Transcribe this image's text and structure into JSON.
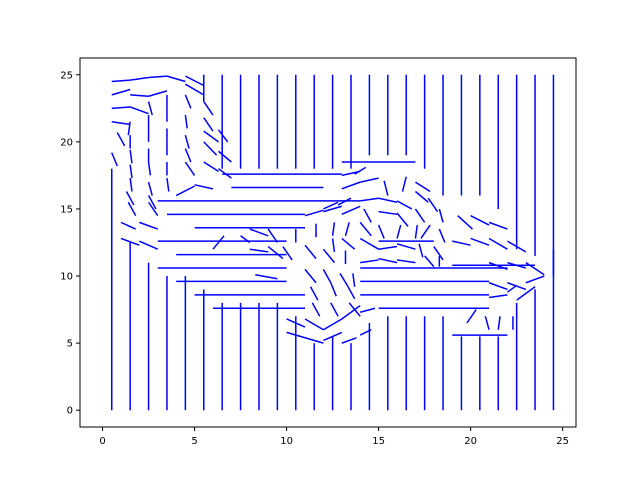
{
  "chart_data": {
    "type": "line",
    "title": "",
    "xlabel": "",
    "ylabel": "",
    "xlim": [
      -1.225,
      25.725
    ],
    "ylim": [
      -1.25,
      26.25
    ],
    "xticks": [
      0,
      5,
      10,
      15,
      20,
      25
    ],
    "yticks": [
      0,
      5,
      10,
      15,
      20,
      25
    ],
    "xtick_labels": [
      "0",
      "5",
      "10",
      "15",
      "20",
      "25"
    ],
    "ytick_labels": [
      "0",
      "5",
      "10",
      "15",
      "20",
      "25"
    ],
    "grid": false,
    "line_color": "#0000ff",
    "description_of_marks": "segments",
    "segments": [
      [
        0.5,
        0,
        0.5,
        18
      ],
      [
        1.5,
        0,
        1.5,
        12.5
      ],
      [
        2.5,
        0,
        2.5,
        11
      ],
      [
        3.5,
        0,
        3.5,
        10
      ],
      [
        4.5,
        0,
        4.5,
        10
      ],
      [
        5.5,
        0,
        5.5,
        9
      ],
      [
        6.5,
        0,
        6.5,
        8
      ],
      [
        7.5,
        0,
        7.5,
        8
      ],
      [
        8.5,
        0,
        8.5,
        8
      ],
      [
        9.5,
        0,
        9.5,
        8
      ],
      [
        10.5,
        0,
        10.5,
        7
      ],
      [
        11.5,
        0,
        11.5,
        5
      ],
      [
        12.5,
        0,
        12.5,
        5.5
      ],
      [
        13.5,
        0,
        13.5,
        5
      ],
      [
        14.5,
        0,
        14.5,
        6.5
      ],
      [
        15.5,
        0,
        15.5,
        7
      ],
      [
        16.5,
        0,
        16.5,
        7
      ],
      [
        17.5,
        0,
        17.5,
        7
      ],
      [
        18.5,
        0,
        18.5,
        7
      ],
      [
        19.5,
        0,
        19.5,
        5.5
      ],
      [
        20.5,
        0,
        20.5,
        5.5
      ],
      [
        21.5,
        0,
        21.5,
        5.5
      ],
      [
        22.5,
        0,
        22.5,
        8
      ],
      [
        23.5,
        0,
        23.5,
        9
      ],
      [
        24.5,
        0,
        24.5,
        12
      ],
      [
        5.5,
        25,
        5.5,
        23
      ],
      [
        6.5,
        25,
        6.5,
        18
      ],
      [
        7.5,
        25,
        7.5,
        18
      ],
      [
        8.5,
        25,
        8.5,
        18
      ],
      [
        9.5,
        25,
        9.5,
        18
      ],
      [
        10.5,
        25,
        10.5,
        18
      ],
      [
        11.5,
        25,
        11.5,
        18
      ],
      [
        12.5,
        25,
        12.5,
        18
      ],
      [
        13.5,
        25,
        13.5,
        18
      ],
      [
        14.5,
        25,
        14.5,
        19
      ],
      [
        15.5,
        25,
        15.5,
        19
      ],
      [
        16.5,
        25,
        16.5,
        19
      ],
      [
        17.5,
        25,
        17.5,
        18
      ],
      [
        18.5,
        25,
        18.5,
        16
      ],
      [
        19.5,
        25,
        19.5,
        16
      ],
      [
        20.5,
        25,
        20.5,
        16
      ],
      [
        21.5,
        25,
        21.5,
        15
      ],
      [
        22.5,
        25,
        22.5,
        12
      ],
      [
        23.5,
        25,
        23.5,
        11.5
      ],
      [
        24.5,
        25,
        24.5,
        10
      ],
      [
        3,
        15.6,
        14,
        15.6
      ],
      [
        6.5,
        17.6,
        13,
        17.6
      ],
      [
        7,
        16.6,
        12,
        16.6
      ],
      [
        13,
        18.5,
        17,
        18.5
      ],
      [
        3.5,
        14.6,
        11,
        14.6
      ],
      [
        5,
        13.6,
        11,
        13.6
      ],
      [
        3,
        12.6,
        10,
        12.6
      ],
      [
        4,
        11.6,
        10,
        11.6
      ],
      [
        3,
        10.6,
        10,
        10.6
      ],
      [
        4,
        9.6,
        10,
        9.6
      ],
      [
        5,
        8.6,
        11,
        8.6
      ],
      [
        6,
        7.6,
        11,
        7.6
      ],
      [
        14,
        8.6,
        21,
        8.6
      ],
      [
        14,
        9.6,
        21,
        9.6
      ],
      [
        15,
        7.6,
        21,
        7.6
      ],
      [
        14,
        10.6,
        22,
        10.6
      ],
      [
        19,
        10.8,
        23.5,
        10.8
      ],
      [
        19,
        5.6,
        22,
        5.6
      ],
      [
        15,
        12.6,
        18,
        12.6
      ],
      [
        0.5,
        24.5,
        1.5,
        24.6
      ],
      [
        1.5,
        24.6,
        2.5,
        24.8
      ],
      [
        2.5,
        24.8,
        3.5,
        24.9
      ],
      [
        3.5,
        24.9,
        4.5,
        24.5
      ],
      [
        4.5,
        24.9,
        5.5,
        24.2
      ],
      [
        0.5,
        23.5,
        1.5,
        23.9
      ],
      [
        1.5,
        23.5,
        2.5,
        23.4
      ],
      [
        2.5,
        23.4,
        3.5,
        23.8
      ],
      [
        4.5,
        24.3,
        5.5,
        23.5
      ],
      [
        0.5,
        22.5,
        1.5,
        22.6
      ],
      [
        1.5,
        22.6,
        2.5,
        22.1
      ],
      [
        2.5,
        23,
        2.7,
        22
      ],
      [
        3.5,
        23.5,
        3.5,
        22.5
      ],
      [
        4.5,
        23.5,
        4.8,
        22.5
      ],
      [
        5.5,
        23,
        6,
        22
      ],
      [
        0.5,
        21.5,
        1.5,
        21.3
      ],
      [
        1.5,
        21.5,
        1.4,
        20.5
      ],
      [
        2.5,
        22,
        2.5,
        21
      ],
      [
        3.5,
        22.5,
        3.5,
        21.5
      ],
      [
        4.5,
        22,
        4.6,
        21
      ],
      [
        5.5,
        21.8,
        6,
        20.8
      ],
      [
        0.8,
        20.7,
        1.2,
        19.7
      ],
      [
        1.5,
        20.5,
        1.5,
        19.5
      ],
      [
        2.5,
        21,
        2.5,
        20
      ],
      [
        3.5,
        21,
        3.5,
        20
      ],
      [
        4.5,
        20.5,
        4.7,
        19.5
      ],
      [
        5.5,
        20.8,
        6.3,
        20
      ],
      [
        6.3,
        20.9,
        6.8,
        20
      ],
      [
        0.5,
        19.2,
        0.8,
        18.2
      ],
      [
        1.5,
        19.4,
        1.6,
        18.4
      ],
      [
        2.5,
        19.5,
        2.5,
        18.5
      ],
      [
        3.5,
        20,
        3.5,
        19
      ],
      [
        4.5,
        19.5,
        4.8,
        18.5
      ],
      [
        5.5,
        20,
        6.2,
        19
      ],
      [
        6.3,
        19.3,
        7,
        18.5
      ],
      [
        1.5,
        18.3,
        1.6,
        17.3
      ],
      [
        2.5,
        18.5,
        2.6,
        17.5
      ],
      [
        3.5,
        18.5,
        3.5,
        17.5
      ],
      [
        4.5,
        18.5,
        5,
        17.5
      ],
      [
        5.5,
        18.5,
        6.3,
        17.8
      ],
      [
        6.3,
        18,
        7,
        17.3
      ],
      [
        1.5,
        17.3,
        1.6,
        16.3
      ],
      [
        2.5,
        17,
        2.7,
        16
      ],
      [
        3.5,
        17.3,
        3.6,
        16.3
      ],
      [
        4,
        16,
        5,
        16.7
      ],
      [
        5,
        16.8,
        6,
        16.5
      ],
      [
        13,
        17.5,
        14,
        17.8
      ],
      [
        13.7,
        17.6,
        14.3,
        18.1
      ],
      [
        1.3,
        16.3,
        1.7,
        15.3
      ],
      [
        2.5,
        16,
        2.9,
        15
      ],
      [
        13,
        16.5,
        14,
        17
      ],
      [
        14,
        17,
        15,
        17.3
      ],
      [
        15.3,
        17.1,
        15.5,
        16
      ],
      [
        16.5,
        17.4,
        16.3,
        16.3
      ],
      [
        17,
        17,
        17.8,
        16.3
      ],
      [
        1.4,
        15.5,
        1.8,
        14.5
      ],
      [
        2.5,
        15.5,
        3,
        14.5
      ],
      [
        12,
        15,
        12.8,
        15.5
      ],
      [
        12.8,
        15.3,
        13.5,
        15.8
      ],
      [
        14,
        15.6,
        15,
        15.8
      ],
      [
        15,
        15.8,
        16,
        15.5
      ],
      [
        16,
        15.6,
        16.8,
        15
      ],
      [
        17,
        16.3,
        17.7,
        15.5
      ],
      [
        17.7,
        15.8,
        18.2,
        14.8
      ],
      [
        1,
        14,
        1.8,
        13.5
      ],
      [
        2,
        14,
        3,
        13.5
      ],
      [
        11,
        14.5,
        12,
        14.9
      ],
      [
        12,
        14.8,
        13,
        15.2
      ],
      [
        13,
        14.6,
        14,
        15.2
      ],
      [
        14.2,
        15,
        14.6,
        14
      ],
      [
        15,
        14.8,
        16,
        14.6
      ],
      [
        16,
        14.7,
        16.6,
        13.7
      ],
      [
        17,
        15,
        17.5,
        14
      ],
      [
        18.3,
        15,
        18.5,
        14
      ],
      [
        1,
        12.8,
        2,
        12.3
      ],
      [
        2,
        12.6,
        3,
        12
      ],
      [
        11.6,
        13.9,
        11.6,
        12.9
      ],
      [
        12.6,
        14,
        12.5,
        13
      ],
      [
        13.4,
        14,
        13.2,
        13
      ],
      [
        14,
        14,
        14.6,
        13
      ],
      [
        15,
        13.8,
        15.3,
        12.8
      ],
      [
        16.2,
        13.8,
        16,
        12.8
      ],
      [
        17.1,
        13.8,
        17,
        12.8
      ],
      [
        17.8,
        13.8,
        17.3,
        12.8
      ],
      [
        18.3,
        13.5,
        18.6,
        12.5
      ],
      [
        19.3,
        14.5,
        20.1,
        13.5
      ],
      [
        20,
        14.5,
        21,
        13.8
      ],
      [
        21,
        14,
        22,
        13.5
      ],
      [
        8,
        13.5,
        9,
        13
      ],
      [
        9,
        13.5,
        9.5,
        12.5
      ],
      [
        10.5,
        13.5,
        10.5,
        12.5
      ],
      [
        12.5,
        12.8,
        12.6,
        11.8
      ],
      [
        13,
        12.8,
        13.7,
        12
      ],
      [
        14,
        12.8,
        15,
        12
      ],
      [
        15,
        12,
        16,
        12.2
      ],
      [
        16,
        12.4,
        17,
        12
      ],
      [
        17.2,
        12.4,
        17.4,
        11.4
      ],
      [
        18,
        12.2,
        18.5,
        11.2
      ],
      [
        19,
        12.6,
        20,
        12.3
      ],
      [
        20,
        12.8,
        21,
        12.3
      ],
      [
        21,
        12.8,
        22,
        12
      ],
      [
        22,
        12.6,
        23,
        11.8
      ],
      [
        6,
        12,
        6.6,
        13
      ],
      [
        7.5,
        13,
        8,
        12.5
      ],
      [
        8,
        12,
        9,
        11.8
      ],
      [
        9,
        12.2,
        9.8,
        11.3
      ],
      [
        9.8,
        12.2,
        10.3,
        11.2
      ],
      [
        11,
        12.3,
        11.6,
        11.3
      ],
      [
        12,
        12,
        12.6,
        11
      ],
      [
        13.2,
        11.9,
        13.2,
        10.9
      ],
      [
        14,
        11,
        15,
        11.2
      ],
      [
        15,
        11.3,
        16,
        11
      ],
      [
        16,
        11.2,
        17,
        11
      ],
      [
        17.5,
        11.5,
        18,
        10.7
      ],
      [
        18.3,
        11.5,
        18.3,
        10.7
      ],
      [
        8.3,
        10.1,
        9.5,
        9.8
      ],
      [
        11,
        10.5,
        11.6,
        9.5
      ],
      [
        12,
        10.5,
        12.4,
        9.5
      ],
      [
        12.9,
        10.2,
        13.3,
        9.3
      ],
      [
        13.6,
        10.2,
        13.7,
        9.2
      ],
      [
        21,
        11,
        22,
        10.5
      ],
      [
        22,
        11,
        23,
        10.6
      ],
      [
        23,
        11,
        24,
        10.1
      ],
      [
        11.3,
        9.2,
        11.7,
        8.2
      ],
      [
        12.4,
        9.5,
        12.7,
        8.5
      ],
      [
        13.3,
        9.3,
        13.7,
        8.3
      ],
      [
        21,
        9.5,
        22,
        9
      ],
      [
        22,
        9.5,
        23,
        9
      ],
      [
        23,
        9.5,
        24,
        10
      ],
      [
        11.4,
        8,
        11.8,
        7
      ],
      [
        12.4,
        8,
        12.8,
        7
      ],
      [
        13.4,
        8,
        14,
        7
      ],
      [
        21,
        8.4,
        22,
        8.6
      ],
      [
        22,
        8.8,
        22.5,
        9.3
      ],
      [
        22.5,
        8.2,
        23.5,
        9.2
      ],
      [
        10,
        6.8,
        11,
        6.2
      ],
      [
        11,
        6.8,
        12,
        6
      ],
      [
        12,
        6,
        13,
        6.8
      ],
      [
        13,
        6.8,
        14,
        7.8
      ],
      [
        14,
        7.3,
        14.8,
        7.6
      ],
      [
        19.8,
        6.5,
        20.3,
        7.5
      ],
      [
        20.8,
        7,
        21,
        6
      ],
      [
        21.6,
        7,
        21.5,
        6
      ],
      [
        22.3,
        7,
        22.3,
        6
      ],
      [
        10,
        5.8,
        11,
        5.4
      ],
      [
        11,
        5.4,
        12,
        5
      ],
      [
        12,
        5.2,
        13,
        5.8
      ],
      [
        13,
        5,
        13.8,
        5.4
      ],
      [
        14,
        5.6,
        14.6,
        6
      ]
    ]
  }
}
